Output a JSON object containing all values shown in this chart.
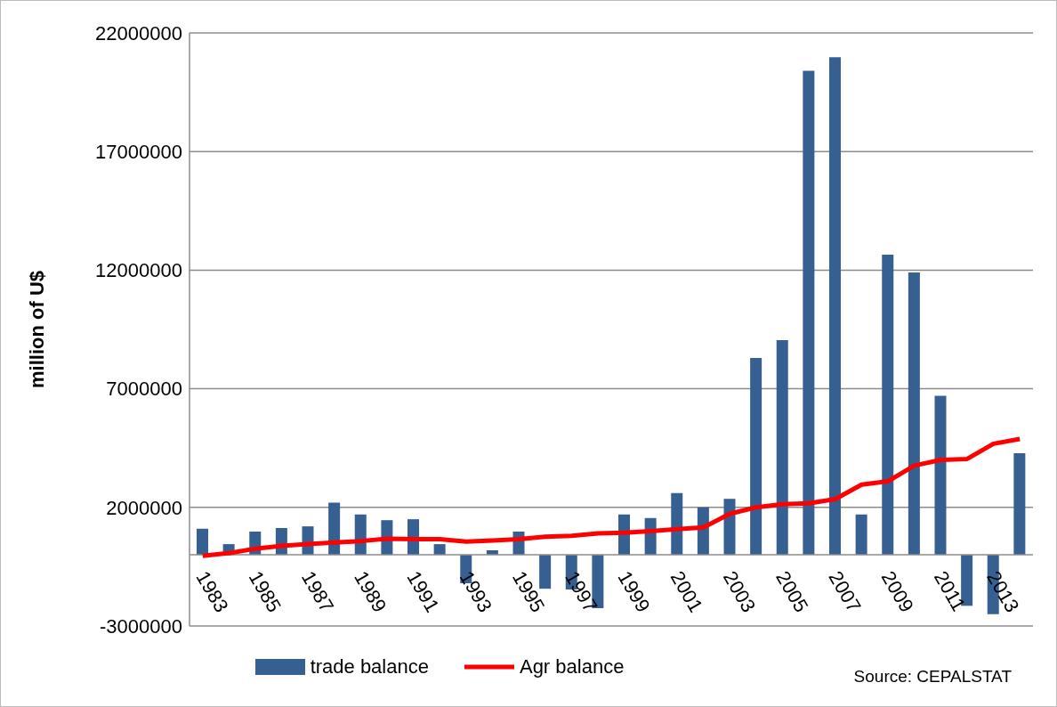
{
  "chart_data": {
    "type": "bar",
    "categories": [
      "1983",
      null,
      "1985",
      null,
      "1987",
      null,
      "1989",
      null,
      "1991",
      null,
      "1993",
      null,
      "1995",
      null,
      "1997",
      null,
      "1999",
      null,
      "2001",
      null,
      "2003",
      null,
      "2005",
      null,
      "2007",
      null,
      "2009",
      null,
      "2011",
      null,
      "2013",
      null
    ],
    "series": [
      {
        "name": "trade balance",
        "color": "#376092",
        "values": [
          1100000,
          450000,
          980000,
          1130000,
          1200000,
          2200000,
          1700000,
          1460000,
          1500000,
          450000,
          -1200000,
          190000,
          980000,
          -1430000,
          -1460000,
          -2250000,
          1700000,
          1550000,
          2600000,
          2000000,
          2360000,
          8300000,
          9050000,
          20400000,
          20980000,
          1700000,
          12650000,
          11900000,
          6700000,
          -2150000,
          -2500000,
          4280000
        ]
      },
      {
        "name": "Agr balance",
        "type": "line",
        "color": "#ff0000",
        "values": [
          -40000,
          70000,
          260000,
          380000,
          450000,
          520000,
          580000,
          680000,
          660000,
          660000,
          560000,
          600000,
          660000,
          760000,
          800000,
          900000,
          930000,
          1000000,
          1080000,
          1160000,
          1730000,
          2000000,
          2130000,
          2170000,
          2350000,
          2960000,
          3100000,
          3760000,
          4000000,
          4040000,
          4680000,
          4880000
        ]
      }
    ],
    "ylabel": "million of U$",
    "ylim": [
      -3000000,
      22000000
    ],
    "yticks": [
      -3000000,
      2000000,
      7000000,
      12000000,
      17000000,
      22000000
    ],
    "grid": "y",
    "legend": "bottom",
    "marker": "none",
    "annotations": [
      "Source: CEPALSTAT"
    ]
  }
}
